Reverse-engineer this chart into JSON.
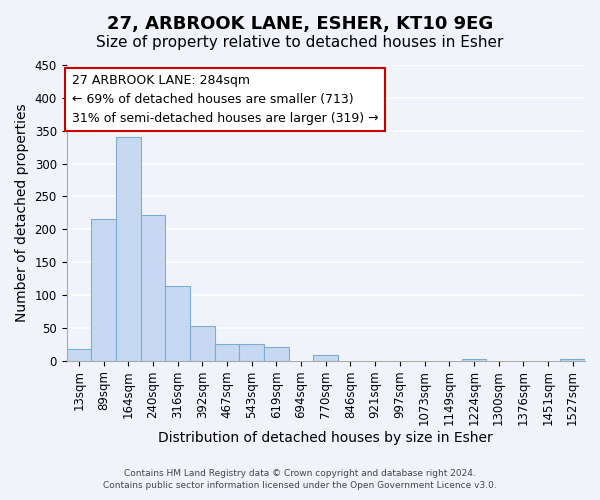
{
  "title": "27, ARBROOK LANE, ESHER, KT10 9EG",
  "subtitle": "Size of property relative to detached houses in Esher",
  "xlabel": "Distribution of detached houses by size in Esher",
  "ylabel": "Number of detached properties",
  "bin_labels": [
    "13sqm",
    "89sqm",
    "164sqm",
    "240sqm",
    "316sqm",
    "392sqm",
    "467sqm",
    "543sqm",
    "619sqm",
    "694sqm",
    "770sqm",
    "846sqm",
    "921sqm",
    "997sqm",
    "1073sqm",
    "1149sqm",
    "1224sqm",
    "1300sqm",
    "1376sqm",
    "1451sqm",
    "1527sqm"
  ],
  "bar_heights": [
    18,
    215,
    340,
    222,
    113,
    53,
    26,
    25,
    20,
    0,
    8,
    0,
    0,
    0,
    0,
    0,
    2,
    0,
    0,
    0,
    2
  ],
  "bar_color": "#c7d9f0",
  "bar_edge_color": "#7aadd4",
  "ylim": [
    0,
    450
  ],
  "yticks": [
    0,
    50,
    100,
    150,
    200,
    250,
    300,
    350,
    400,
    450
  ],
  "annotation_title": "27 ARBROOK LANE: 284sqm",
  "annotation_line1": "← 69% of detached houses are smaller (713)",
  "annotation_line2": "31% of semi-detached houses are larger (319) →",
  "annotation_box_color": "#ffffff",
  "annotation_box_edgecolor": "#cc0000",
  "property_line_x": 284,
  "footer_line1": "Contains HM Land Registry data © Crown copyright and database right 2024.",
  "footer_line2": "Contains public sector information licensed under the Open Government Licence v3.0.",
  "background_color": "#f0f4fa",
  "grid_color": "#ffffff",
  "title_fontsize": 13,
  "subtitle_fontsize": 11,
  "axis_label_fontsize": 10,
  "tick_fontsize": 8.5
}
